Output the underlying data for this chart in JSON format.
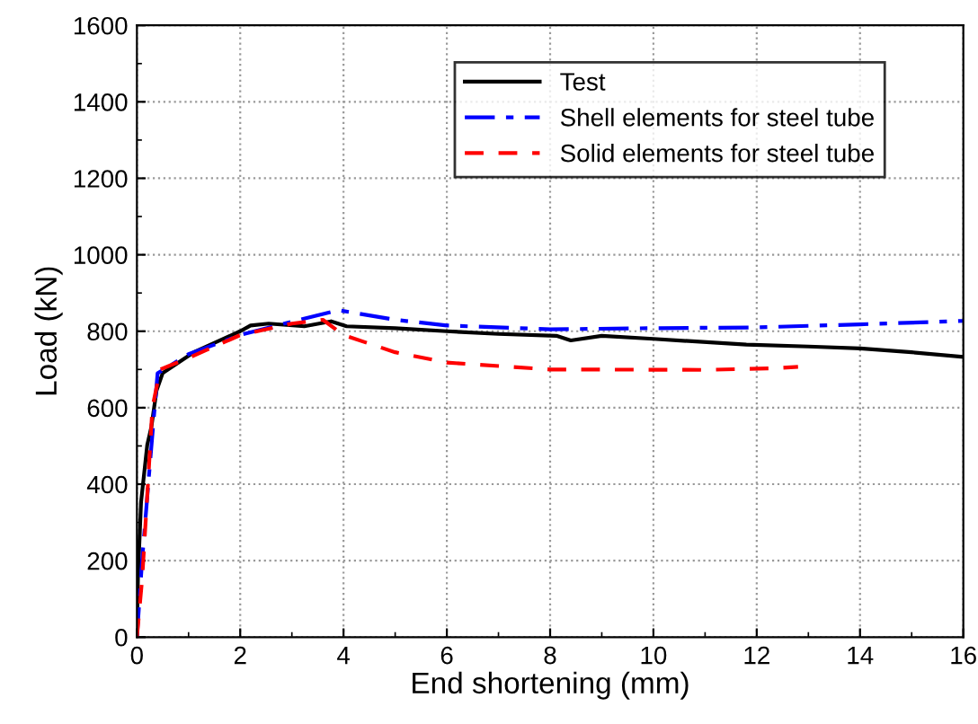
{
  "chart_data": {
    "type": "line",
    "xlabel": "End shortening (mm)",
    "ylabel": "Load (kN)",
    "xlim": [
      0,
      16
    ],
    "ylim": [
      0,
      1600
    ],
    "xticks": [
      0,
      2,
      4,
      6,
      8,
      10,
      12,
      14,
      16
    ],
    "yticks": [
      0,
      200,
      400,
      600,
      800,
      1000,
      1200,
      1400,
      1600
    ],
    "grid": true,
    "legend": "top right",
    "series": [
      {
        "name": "Test",
        "color": "#000000",
        "line_style": "solid",
        "x": [
          0,
          0.02,
          0.08,
          0.2,
          0.28,
          0.38,
          0.5,
          1.1,
          2.0,
          2.2,
          2.55,
          3.24,
          3.76,
          4.06,
          5,
          6,
          7,
          8.12,
          8.4,
          9,
          10,
          11.8,
          13,
          14,
          15,
          16
        ],
        "values": [
          0,
          157,
          353,
          503,
          550,
          645,
          691,
          745,
          800,
          815,
          820,
          813,
          826,
          813,
          808,
          800,
          793,
          788,
          776,
          788,
          780,
          765,
          760,
          755,
          745,
          733
        ]
      },
      {
        "name": "Shell elements for steel tube",
        "color": "#0000ff",
        "line_style": "dashdot",
        "x": [
          0,
          0.1,
          0.25,
          0.4,
          1,
          2,
          3,
          3.9,
          5,
          6,
          8,
          10,
          12,
          14,
          16
        ],
        "values": [
          0,
          200,
          450,
          690,
          740,
          790,
          825,
          855,
          830,
          815,
          805,
          808,
          810,
          818,
          827
        ]
      },
      {
        "name": "Solid elements for steel tube",
        "color": "#ff0000",
        "line_style": "dashed",
        "x": [
          0,
          0.1,
          0.2,
          0.3,
          0.45,
          1,
          2,
          3,
          3.6,
          4,
          5,
          6,
          8,
          11,
          12.3,
          12.8
        ],
        "values": [
          0,
          150,
          370,
          600,
          700,
          730,
          790,
          820,
          830,
          790,
          745,
          718,
          700,
          699,
          703,
          707
        ]
      }
    ]
  }
}
